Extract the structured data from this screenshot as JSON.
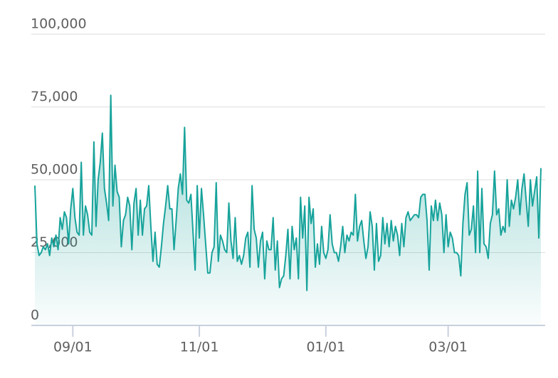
{
  "chart_data": {
    "type": "area",
    "categories": [
      null,
      null,
      null,
      null,
      null,
      null,
      null,
      null,
      null,
      null,
      null,
      null,
      null,
      null,
      null,
      null,
      null,
      null,
      "09/01",
      null,
      null,
      null,
      null,
      null,
      null,
      null,
      null,
      null,
      null,
      null,
      null,
      null,
      null,
      null,
      null,
      null,
      null,
      null,
      null,
      null,
      null,
      null,
      null,
      null,
      null,
      null,
      null,
      null,
      null,
      null,
      null,
      null,
      null,
      null,
      null,
      null,
      null,
      null,
      null,
      null,
      null,
      null,
      null,
      null,
      null,
      null,
      null,
      null,
      null,
      null,
      null,
      null,
      null,
      null,
      null,
      null,
      null,
      null,
      "11/01",
      null,
      null,
      null,
      null,
      null,
      null,
      null,
      null,
      null,
      null,
      null,
      null,
      null,
      null,
      null,
      null,
      null,
      null,
      null,
      null,
      null,
      null,
      null,
      null,
      null,
      null,
      null,
      null,
      null,
      null,
      null,
      null,
      null,
      null,
      null,
      null,
      null,
      null,
      null,
      null,
      null,
      null,
      null,
      null,
      null,
      null,
      null,
      null,
      null,
      null,
      null,
      null,
      null,
      null,
      null,
      null,
      null,
      null,
      null,
      "01/01",
      null,
      null,
      null,
      null,
      null,
      null,
      null,
      null,
      null,
      null,
      null,
      null,
      null,
      null,
      null,
      null,
      null,
      null,
      null,
      null,
      null,
      null,
      null,
      null,
      null,
      null,
      null,
      null,
      null,
      null,
      null,
      null,
      null,
      null,
      null,
      null,
      null,
      null,
      null,
      null,
      null,
      null,
      null,
      null,
      null,
      null,
      null,
      null,
      null,
      null,
      null,
      null,
      null,
      null,
      null,
      null,
      null,
      "03/01",
      null,
      null,
      null,
      null,
      null,
      null,
      null,
      null,
      null,
      null,
      null,
      null,
      null,
      null,
      null,
      null,
      null,
      null,
      null,
      null,
      null,
      null,
      null,
      null,
      null,
      null,
      null,
      null,
      null,
      null,
      null,
      null,
      null,
      null,
      null,
      null,
      null,
      null,
      null,
      null,
      null,
      null,
      null,
      null
    ],
    "values": [
      48000,
      28000,
      24000,
      25000,
      27000,
      26000,
      28000,
      24000,
      30000,
      27000,
      31000,
      26000,
      37000,
      33000,
      39000,
      37000,
      28000,
      40000,
      47000,
      37000,
      32000,
      31000,
      56000,
      31000,
      41000,
      38000,
      32000,
      31000,
      63000,
      34000,
      50000,
      56000,
      66000,
      47000,
      42000,
      36000,
      79000,
      41000,
      55000,
      46000,
      44000,
      27000,
      36000,
      38000,
      44000,
      41000,
      26000,
      42000,
      47000,
      31000,
      43000,
      31000,
      40000,
      41000,
      48000,
      34000,
      22000,
      32000,
      21000,
      20000,
      27000,
      35000,
      41000,
      48000,
      40000,
      40000,
      26000,
      36000,
      47000,
      52000,
      45000,
      68000,
      43000,
      42000,
      45000,
      32000,
      19000,
      48000,
      30000,
      47000,
      38000,
      28000,
      18000,
      18000,
      25000,
      27000,
      49000,
      22000,
      31000,
      29000,
      26000,
      25000,
      42000,
      29000,
      23000,
      37000,
      22000,
      24000,
      21000,
      24000,
      30000,
      32000,
      20000,
      48000,
      33000,
      30000,
      20000,
      29000,
      32000,
      16000,
      29000,
      26000,
      26000,
      37000,
      19000,
      29000,
      13000,
      16000,
      17000,
      24000,
      33000,
      16000,
      34000,
      26000,
      30000,
      16000,
      44000,
      30000,
      41000,
      12000,
      44000,
      35000,
      40000,
      20000,
      28000,
      21000,
      34000,
      25000,
      23000,
      26000,
      38000,
      28000,
      25000,
      25000,
      22000,
      27000,
      34000,
      25000,
      31000,
      29000,
      32000,
      31000,
      45000,
      29000,
      34000,
      36000,
      29000,
      23000,
      27000,
      39000,
      34000,
      19000,
      35000,
      22000,
      24000,
      37000,
      28000,
      35000,
      27000,
      36000,
      29000,
      34000,
      31000,
      24000,
      35000,
      27000,
      37000,
      39000,
      36000,
      37000,
      38000,
      38000,
      37000,
      44000,
      45000,
      45000,
      36000,
      19000,
      41000,
      36000,
      43000,
      36000,
      42000,
      38000,
      25000,
      38000,
      27000,
      32000,
      30000,
      25000,
      25000,
      24000,
      17000,
      35000,
      45000,
      49000,
      31000,
      33000,
      41000,
      25000,
      53000,
      25000,
      47000,
      28000,
      27000,
      23000,
      35000,
      38000,
      53000,
      38000,
      40000,
      31000,
      34000,
      32000,
      50000,
      34000,
      43000,
      40000,
      44000,
      50000,
      38000,
      47000,
      52000,
      43000,
      34000,
      50000,
      41000,
      46000,
      51000,
      30000,
      54000
    ],
    "color": "#17a39b",
    "ylim": [
      0,
      100000
    ],
    "yticks": [
      0,
      {
        "value": 25000,
        "label": "25,000"
      },
      {
        "value": 50000,
        "label": "50,000"
      },
      {
        "value": 75000,
        "label": "75,000"
      },
      {
        "value": 100000,
        "label": "100,000"
      }
    ],
    "grid": true
  }
}
